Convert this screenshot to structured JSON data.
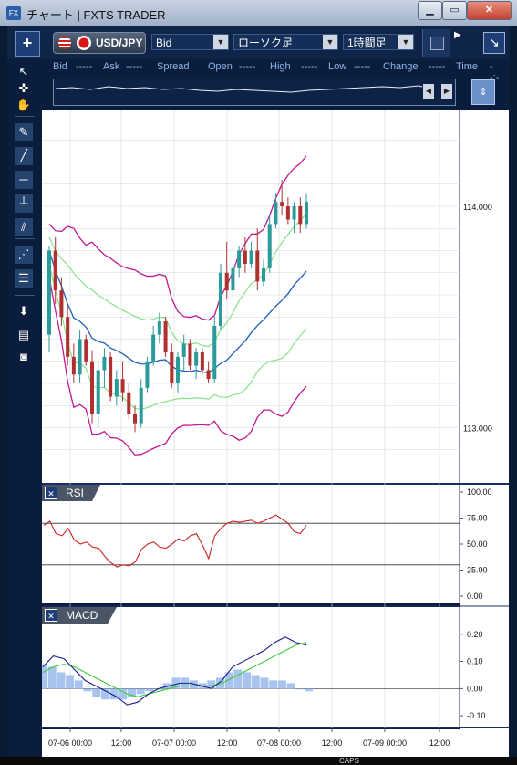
{
  "window": {
    "icon_text": "FX",
    "title": "チャート | FXTS TRADER",
    "min_label": "▁",
    "max_label": "▭",
    "close_label": "✕"
  },
  "toolbar": {
    "add_label": "+",
    "symbol": "USD/JPY",
    "price_type": "Bid",
    "chart_type": "ローソク足",
    "timeframe": "1時間足",
    "dropdown_arrow": "▼",
    "next_arrow": "▶",
    "expand_label": "↘"
  },
  "quote": {
    "bid_label": "Bid",
    "bid_value": "-----",
    "ask_label": "Ask",
    "ask_value": "-----",
    "spread_label": "Spread",
    "open_label": "Open",
    "open_value": "-----",
    "high_label": "High",
    "high_value": "-----",
    "low_label": "Low",
    "low_value": "-----",
    "change_label": "Change",
    "change_value": "-----",
    "time_label": "Time",
    "time_value": "--:--"
  },
  "slider": {
    "left_btn": "◀",
    "right_btn": "▶"
  },
  "side_scroll_label": "⇕",
  "tools": [
    {
      "name": "pointer-icon",
      "glyph": "↖"
    },
    {
      "name": "crosshair-pointer-icon",
      "glyph": "✜"
    },
    {
      "name": "hand-icon",
      "glyph": "✋"
    },
    {
      "name": "pin-icon",
      "glyph": "✎"
    },
    {
      "name": "trendline-icon",
      "glyph": "╱"
    },
    {
      "name": "horizontal-line-icon",
      "glyph": "─"
    },
    {
      "name": "vertical-line-icon",
      "glyph": "┴"
    },
    {
      "name": "channel-icon",
      "glyph": "⫽"
    },
    {
      "name": "fan-icon",
      "glyph": "⋰"
    },
    {
      "name": "fibonacci-icon",
      "glyph": "☰"
    },
    {
      "name": "download-icon",
      "glyph": "⬇"
    },
    {
      "name": "list-icon",
      "glyph": "▤"
    },
    {
      "name": "camera-icon",
      "glyph": "◙"
    }
  ],
  "colors": {
    "background": "#ffffff",
    "grid": "#d0d7e2",
    "axis_border": "#1b2d66",
    "candle_up": "#2a9a9a",
    "candle_down": "#b03030",
    "bb_outer": "#c01890",
    "bb_inner": "#7de07d",
    "bb_mid": "#1f5fb8",
    "rsi_line": "#cc2222",
    "macd_line": "#1a1a8c",
    "signal_line": "#39cc39",
    "histogram": "#a8c4ee"
  },
  "chart_data": [
    {
      "type": "candlestick",
      "symbol": "USD/JPY",
      "timeframe": "1時間足",
      "ylim": [
        112.8,
        114.4
      ],
      "yticks": [
        113.0,
        114.0
      ],
      "ytick_labels": [
        "113.000",
        "114.000"
      ],
      "indicators": [
        "Bollinger Bands ±1σ ±2σ"
      ],
      "candles": [
        [
          113.42,
          113.82,
          113.34,
          113.8
        ],
        [
          113.8,
          113.86,
          113.56,
          113.62
        ],
        [
          113.62,
          113.68,
          113.46,
          113.5
        ],
        [
          113.5,
          113.55,
          113.28,
          113.32
        ],
        [
          113.32,
          113.38,
          113.2,
          113.24
        ],
        [
          113.24,
          113.44,
          113.2,
          113.4
        ],
        [
          113.4,
          113.42,
          113.28,
          113.3
        ],
        [
          113.3,
          113.35,
          113.02,
          113.06
        ],
        [
          113.06,
          113.3,
          113.0,
          113.26
        ],
        [
          113.26,
          113.36,
          113.18,
          113.32
        ],
        [
          113.32,
          113.34,
          113.12,
          113.14
        ],
        [
          113.14,
          113.26,
          113.1,
          113.22
        ],
        [
          113.22,
          113.3,
          113.12,
          113.16
        ],
        [
          113.16,
          113.2,
          113.04,
          113.06
        ],
        [
          113.06,
          113.1,
          112.98,
          113.02
        ],
        [
          113.02,
          113.22,
          113.0,
          113.18
        ],
        [
          113.18,
          113.32,
          113.16,
          113.3
        ],
        [
          113.3,
          113.46,
          113.28,
          113.42
        ],
        [
          113.42,
          113.52,
          113.38,
          113.48
        ],
        [
          113.48,
          113.5,
          113.32,
          113.34
        ],
        [
          113.34,
          113.38,
          113.18,
          113.2
        ],
        [
          113.2,
          113.34,
          113.16,
          113.32
        ],
        [
          113.32,
          113.42,
          113.26,
          113.38
        ],
        [
          113.38,
          113.4,
          113.26,
          113.28
        ],
        [
          113.28,
          113.36,
          113.22,
          113.34
        ],
        [
          113.34,
          113.36,
          113.24,
          113.26
        ],
        [
          113.26,
          113.3,
          113.2,
          113.22
        ],
        [
          113.22,
          113.5,
          113.2,
          113.46
        ],
        [
          113.46,
          113.74,
          113.44,
          113.7
        ],
        [
          113.7,
          113.84,
          113.58,
          113.62
        ],
        [
          113.62,
          113.74,
          113.58,
          113.72
        ],
        [
          113.72,
          113.82,
          113.68,
          113.8
        ],
        [
          113.8,
          113.86,
          113.7,
          113.74
        ],
        [
          113.74,
          113.84,
          113.72,
          113.8
        ],
        [
          113.8,
          113.9,
          113.62,
          113.66
        ],
        [
          113.66,
          113.76,
          113.64,
          113.72
        ],
        [
          113.72,
          113.96,
          113.7,
          113.92
        ],
        [
          113.92,
          114.06,
          113.9,
          114.02
        ],
        [
          114.02,
          114.12,
          113.96,
          114.0
        ],
        [
          114.0,
          114.04,
          113.92,
          113.94
        ],
        [
          113.94,
          114.02,
          113.88,
          114.0
        ],
        [
          114.0,
          114.04,
          113.88,
          113.92
        ],
        [
          113.92,
          114.06,
          113.9,
          114.02
        ]
      ]
    },
    {
      "type": "line",
      "indicator": "RSI",
      "ylim": [
        0,
        100
      ],
      "yticks": [
        100,
        75,
        50,
        25,
        0
      ],
      "ytick_labels": [
        "100.00",
        "75.00",
        "50.00",
        "25.00",
        "0.00"
      ],
      "levels": [
        70,
        30
      ],
      "values": [
        68,
        72,
        60,
        58,
        65,
        54,
        50,
        52,
        47,
        46,
        38,
        32,
        28,
        30,
        29,
        33,
        45,
        50,
        52,
        47,
        46,
        50,
        55,
        53,
        58,
        60,
        49,
        36,
        58,
        65,
        70,
        72,
        71,
        72,
        73,
        70,
        72,
        75,
        78,
        74,
        70,
        62,
        60,
        68
      ]
    },
    {
      "type": "line",
      "indicator": "MACD",
      "ylim": [
        -0.13,
        0.28
      ],
      "yticks": [
        0.2,
        0.1,
        0.0,
        -0.1
      ],
      "ytick_labels": [
        "0.20",
        "0.10",
        "0.00",
        "-0.10"
      ],
      "series": [
        {
          "values": [
            0.08,
            0.12,
            0.11,
            0.07,
            0.03,
            0.01,
            -0.01,
            -0.03,
            -0.06,
            -0.05,
            -0.02,
            0.0,
            0.01,
            0.02,
            0.02,
            0.01,
            0.0,
            0.03,
            0.08,
            0.1,
            0.12,
            0.14,
            0.17,
            0.19,
            0.17,
            0.16
          ]
        },
        {
          "values": [
            0.06,
            0.08,
            0.09,
            0.08,
            0.06,
            0.04,
            0.02,
            0.0,
            -0.02,
            -0.03,
            -0.02,
            -0.01,
            0.0,
            0.01,
            0.01,
            0.01,
            0.01,
            0.02,
            0.04,
            0.06,
            0.08,
            0.1,
            0.12,
            0.14,
            0.16,
            0.17
          ]
        }
      ],
      "histogram": [
        0.09,
        0.08,
        0.06,
        0.05,
        0.03,
        -0.01,
        -0.03,
        -0.04,
        -0.04,
        -0.04,
        -0.03,
        -0.02,
        -0.01,
        0.0,
        0.02,
        0.04,
        0.04,
        0.03,
        0.02,
        0.03,
        0.04,
        0.06,
        0.07,
        0.06,
        0.05,
        0.04,
        0.03,
        0.03,
        0.02,
        0.0,
        -0.01
      ]
    }
  ],
  "panels": {
    "rsi_title": "RSI",
    "macd_title": "MACD",
    "close_glyph": "✕"
  },
  "xaxis": {
    "labels": [
      "07-06 00:00",
      "12:00",
      "07-07 00:00",
      "12:00",
      "07-08 00:00",
      "12:00",
      "07-09 00:00",
      "12:00"
    ]
  },
  "status": {
    "text": "CAPS"
  }
}
